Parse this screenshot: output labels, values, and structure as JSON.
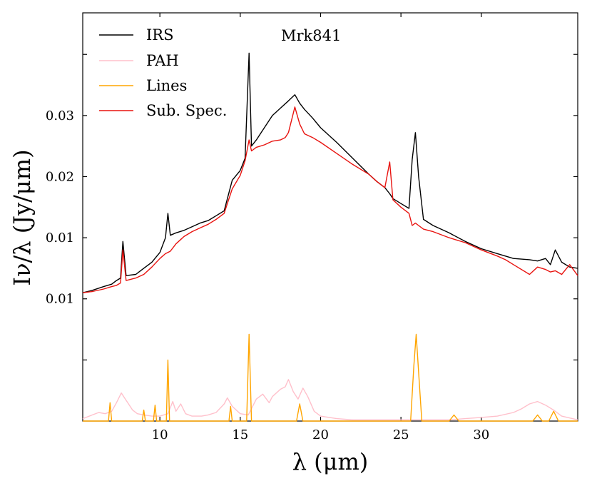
{
  "chart_data": {
    "type": "line",
    "annotation": "Mrk841",
    "xlabel": "λ (μm)",
    "ylabel": "Iν/λ (Jy/μm)",
    "xlim": [
      5.2,
      36
    ],
    "ylim": [
      0.0,
      0.0334
    ],
    "x_ticks": [
      10,
      15,
      20,
      25,
      30
    ],
    "x_tick_labels": [
      "10",
      "15",
      "20",
      "25",
      "30"
    ],
    "y_ticks": [
      0.005,
      0.01,
      0.015,
      0.02,
      0.025,
      0.03
    ],
    "y_tick_labels": [
      "0.01",
      "0.01",
      "0.02",
      "0.03"
    ],
    "y_tick_label_values": [
      0.01,
      0.015,
      0.02,
      0.025
    ],
    "legend": {
      "position": "top-left",
      "entries": [
        "IRS",
        "PAH",
        "Lines",
        "Sub. Spec."
      ]
    },
    "series": [
      {
        "name": "IRS",
        "color": "#000000",
        "x": [
          5.2,
          5.8,
          6.5,
          7.0,
          7.3,
          7.55,
          7.7,
          7.9,
          8.5,
          9.0,
          9.5,
          10.0,
          10.35,
          10.5,
          10.65,
          11.0,
          11.5,
          12.0,
          12.5,
          13.0,
          13.5,
          14.0,
          14.2,
          14.5,
          15.0,
          15.3,
          15.55,
          15.7,
          16.0,
          16.5,
          17.0,
          17.5,
          18.0,
          18.4,
          18.7,
          19.0,
          19.5,
          20.0,
          21.0,
          22.0,
          23.0,
          23.5,
          24.0,
          24.3,
          24.5,
          25.0,
          25.5,
          25.7,
          25.9,
          26.1,
          26.4,
          27.0,
          28.0,
          29.0,
          30.0,
          31.0,
          31.5,
          32.0,
          33.0,
          33.5,
          34.0,
          34.3,
          34.6,
          35.0,
          35.5,
          36.0
        ],
        "y": [
          0.0105,
          0.0107,
          0.011,
          0.0112,
          0.0115,
          0.0117,
          0.0147,
          0.0119,
          0.012,
          0.0125,
          0.013,
          0.0138,
          0.015,
          0.017,
          0.0152,
          0.0154,
          0.0156,
          0.0159,
          0.0162,
          0.0164,
          0.0168,
          0.0172,
          0.0182,
          0.0197,
          0.0205,
          0.0215,
          0.0301,
          0.0225,
          0.023,
          0.024,
          0.025,
          0.0256,
          0.0262,
          0.0267,
          0.026,
          0.0255,
          0.0248,
          0.024,
          0.0228,
          0.0215,
          0.0202,
          0.0196,
          0.0191,
          0.0186,
          0.0182,
          0.0178,
          0.0174,
          0.0214,
          0.0236,
          0.02,
          0.0165,
          0.016,
          0.0154,
          0.0147,
          0.0141,
          0.0137,
          0.0135,
          0.0133,
          0.0132,
          0.0131,
          0.0133,
          0.0128,
          0.014,
          0.013,
          0.0126,
          0.0125
        ]
      },
      {
        "name": "PAH",
        "color": "#ffc0cb",
        "x": [
          5.2,
          5.8,
          6.2,
          6.6,
          7.0,
          7.3,
          7.6,
          7.9,
          8.3,
          8.6,
          9.0,
          9.5,
          10.0,
          10.5,
          10.8,
          11.0,
          11.3,
          11.6,
          12.0,
          12.6,
          13.0,
          13.5,
          14.0,
          14.2,
          14.5,
          15.0,
          15.5,
          16.0,
          16.4,
          16.8,
          17.0,
          17.5,
          17.8,
          18.0,
          18.3,
          18.6,
          18.9,
          19.2,
          19.6,
          20.0,
          21.0,
          22.0,
          24.0,
          26.0,
          28.0,
          29.0,
          30.0,
          31.0,
          32.0,
          32.5,
          33.0,
          33.5,
          34.0,
          34.5,
          35.0,
          36.0
        ],
        "y": [
          0.0002,
          0.0005,
          0.0007,
          0.0006,
          0.0008,
          0.0015,
          0.0023,
          0.0017,
          0.0009,
          0.0006,
          0.0005,
          0.0004,
          0.0004,
          0.0006,
          0.0016,
          0.0008,
          0.0014,
          0.0006,
          0.0004,
          0.0004,
          0.0005,
          0.0007,
          0.0014,
          0.0019,
          0.0012,
          0.0006,
          0.0005,
          0.0018,
          0.0022,
          0.0015,
          0.002,
          0.0026,
          0.0028,
          0.0034,
          0.0024,
          0.0018,
          0.0027,
          0.002,
          0.0008,
          0.0004,
          0.0002,
          0.0001,
          0.0001,
          0.0001,
          0.0001,
          0.0002,
          0.0003,
          0.0004,
          0.0007,
          0.001,
          0.0014,
          0.0016,
          0.0013,
          0.0009,
          0.0004,
          0.0001
        ]
      },
      {
        "name": "Lines",
        "color": "#ffa500",
        "x": [
          5.2,
          6.8,
          6.9,
          7.0,
          7.1,
          8.9,
          9.0,
          9.1,
          9.6,
          9.7,
          9.8,
          10.4,
          10.5,
          10.6,
          13.6,
          14.3,
          14.4,
          14.5,
          15.4,
          15.55,
          15.7,
          18.5,
          18.7,
          18.9,
          25.6,
          25.8,
          25.95,
          26.1,
          26.3,
          28.0,
          28.3,
          28.6,
          33.2,
          33.5,
          33.8,
          34.2,
          34.5,
          34.8,
          36.0
        ],
        "y": [
          0.0,
          0.0,
          0.0015,
          0.0,
          0.0,
          0.0,
          0.0009,
          0.0,
          0.0,
          0.0013,
          0.0,
          0.0,
          0.005,
          0.0,
          0.0,
          0.0,
          0.0012,
          0.0,
          0.0,
          0.0071,
          0.0,
          0.0,
          0.0014,
          0.0,
          0.0,
          0.0045,
          0.0071,
          0.004,
          0.0,
          0.0,
          0.0005,
          0.0,
          0.0,
          0.0005,
          0.0,
          0.0,
          0.0008,
          0.0,
          0.0
        ]
      },
      {
        "name": "Sub. Spec.",
        "color": "#e8130f",
        "x": [
          5.2,
          5.8,
          6.5,
          7.0,
          7.3,
          7.55,
          7.7,
          7.9,
          8.5,
          9.0,
          9.5,
          10.0,
          10.35,
          10.5,
          10.65,
          11.0,
          11.5,
          12.0,
          12.5,
          13.0,
          13.5,
          14.0,
          14.2,
          14.5,
          15.0,
          15.3,
          15.55,
          15.7,
          16.0,
          16.5,
          17.0,
          17.5,
          17.8,
          18.0,
          18.4,
          18.7,
          19.0,
          19.5,
          20.0,
          21.0,
          22.0,
          23.0,
          23.5,
          24.0,
          24.3,
          24.5,
          25.0,
          25.5,
          25.7,
          25.9,
          26.1,
          26.4,
          27.0,
          28.0,
          29.0,
          30.0,
          31.0,
          31.5,
          32.0,
          33.0,
          33.5,
          34.0,
          34.3,
          34.6,
          35.0,
          35.5,
          36.0
        ],
        "y": [
          0.0105,
          0.0106,
          0.0108,
          0.011,
          0.0111,
          0.0113,
          0.014,
          0.0115,
          0.0117,
          0.012,
          0.0126,
          0.0133,
          0.0137,
          0.0138,
          0.0139,
          0.0145,
          0.0151,
          0.0155,
          0.0158,
          0.0161,
          0.0165,
          0.017,
          0.0178,
          0.019,
          0.0201,
          0.0213,
          0.023,
          0.0221,
          0.0224,
          0.0226,
          0.0229,
          0.023,
          0.0232,
          0.0236,
          0.0257,
          0.0243,
          0.0235,
          0.0232,
          0.0228,
          0.0219,
          0.021,
          0.0202,
          0.0196,
          0.0191,
          0.0212,
          0.0181,
          0.0175,
          0.017,
          0.016,
          0.0162,
          0.016,
          0.0157,
          0.0155,
          0.015,
          0.0146,
          0.014,
          0.0135,
          0.0132,
          0.0128,
          0.012,
          0.0126,
          0.0124,
          0.0122,
          0.0123,
          0.012,
          0.0128,
          0.0119
        ]
      }
    ]
  }
}
